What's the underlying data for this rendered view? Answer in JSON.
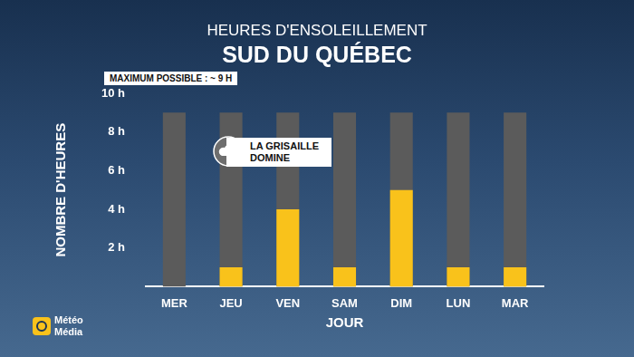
{
  "chart_data": {
    "type": "bar",
    "title": "HEURES D'ENSOLEILLEMENT",
    "subtitle": "SUD DU QUÉBEC",
    "x_label": "JOUR",
    "y_label": "NOMBRE D'HEURES",
    "categories": [
      "MER",
      "JEU",
      "VEN",
      "SAM",
      "DIM",
      "LUN",
      "MAR"
    ],
    "series": [
      {
        "color": "#f9c21b",
        "values": [
          0,
          1,
          4,
          1,
          5,
          1,
          1
        ]
      },
      {
        "color": "#5b5b5b",
        "values": [
          9,
          9,
          9,
          9,
          9,
          9,
          9
        ]
      }
    ],
    "ylim": [
      0,
      10
    ],
    "yticks": [
      {
        "value": 2,
        "label": "2 h"
      },
      {
        "value": 4,
        "label": "4 h"
      },
      {
        "value": 6,
        "label": "6 h"
      },
      {
        "value": 8,
        "label": "8 h"
      },
      {
        "value": 10,
        "label": "10 h"
      }
    ],
    "grid": false,
    "annotations": [
      "MAXIMUM POSSIBLE : ~ 9 H",
      "LA GRISAILLE DOMINE"
    ],
    "source": "Météo Média"
  }
}
